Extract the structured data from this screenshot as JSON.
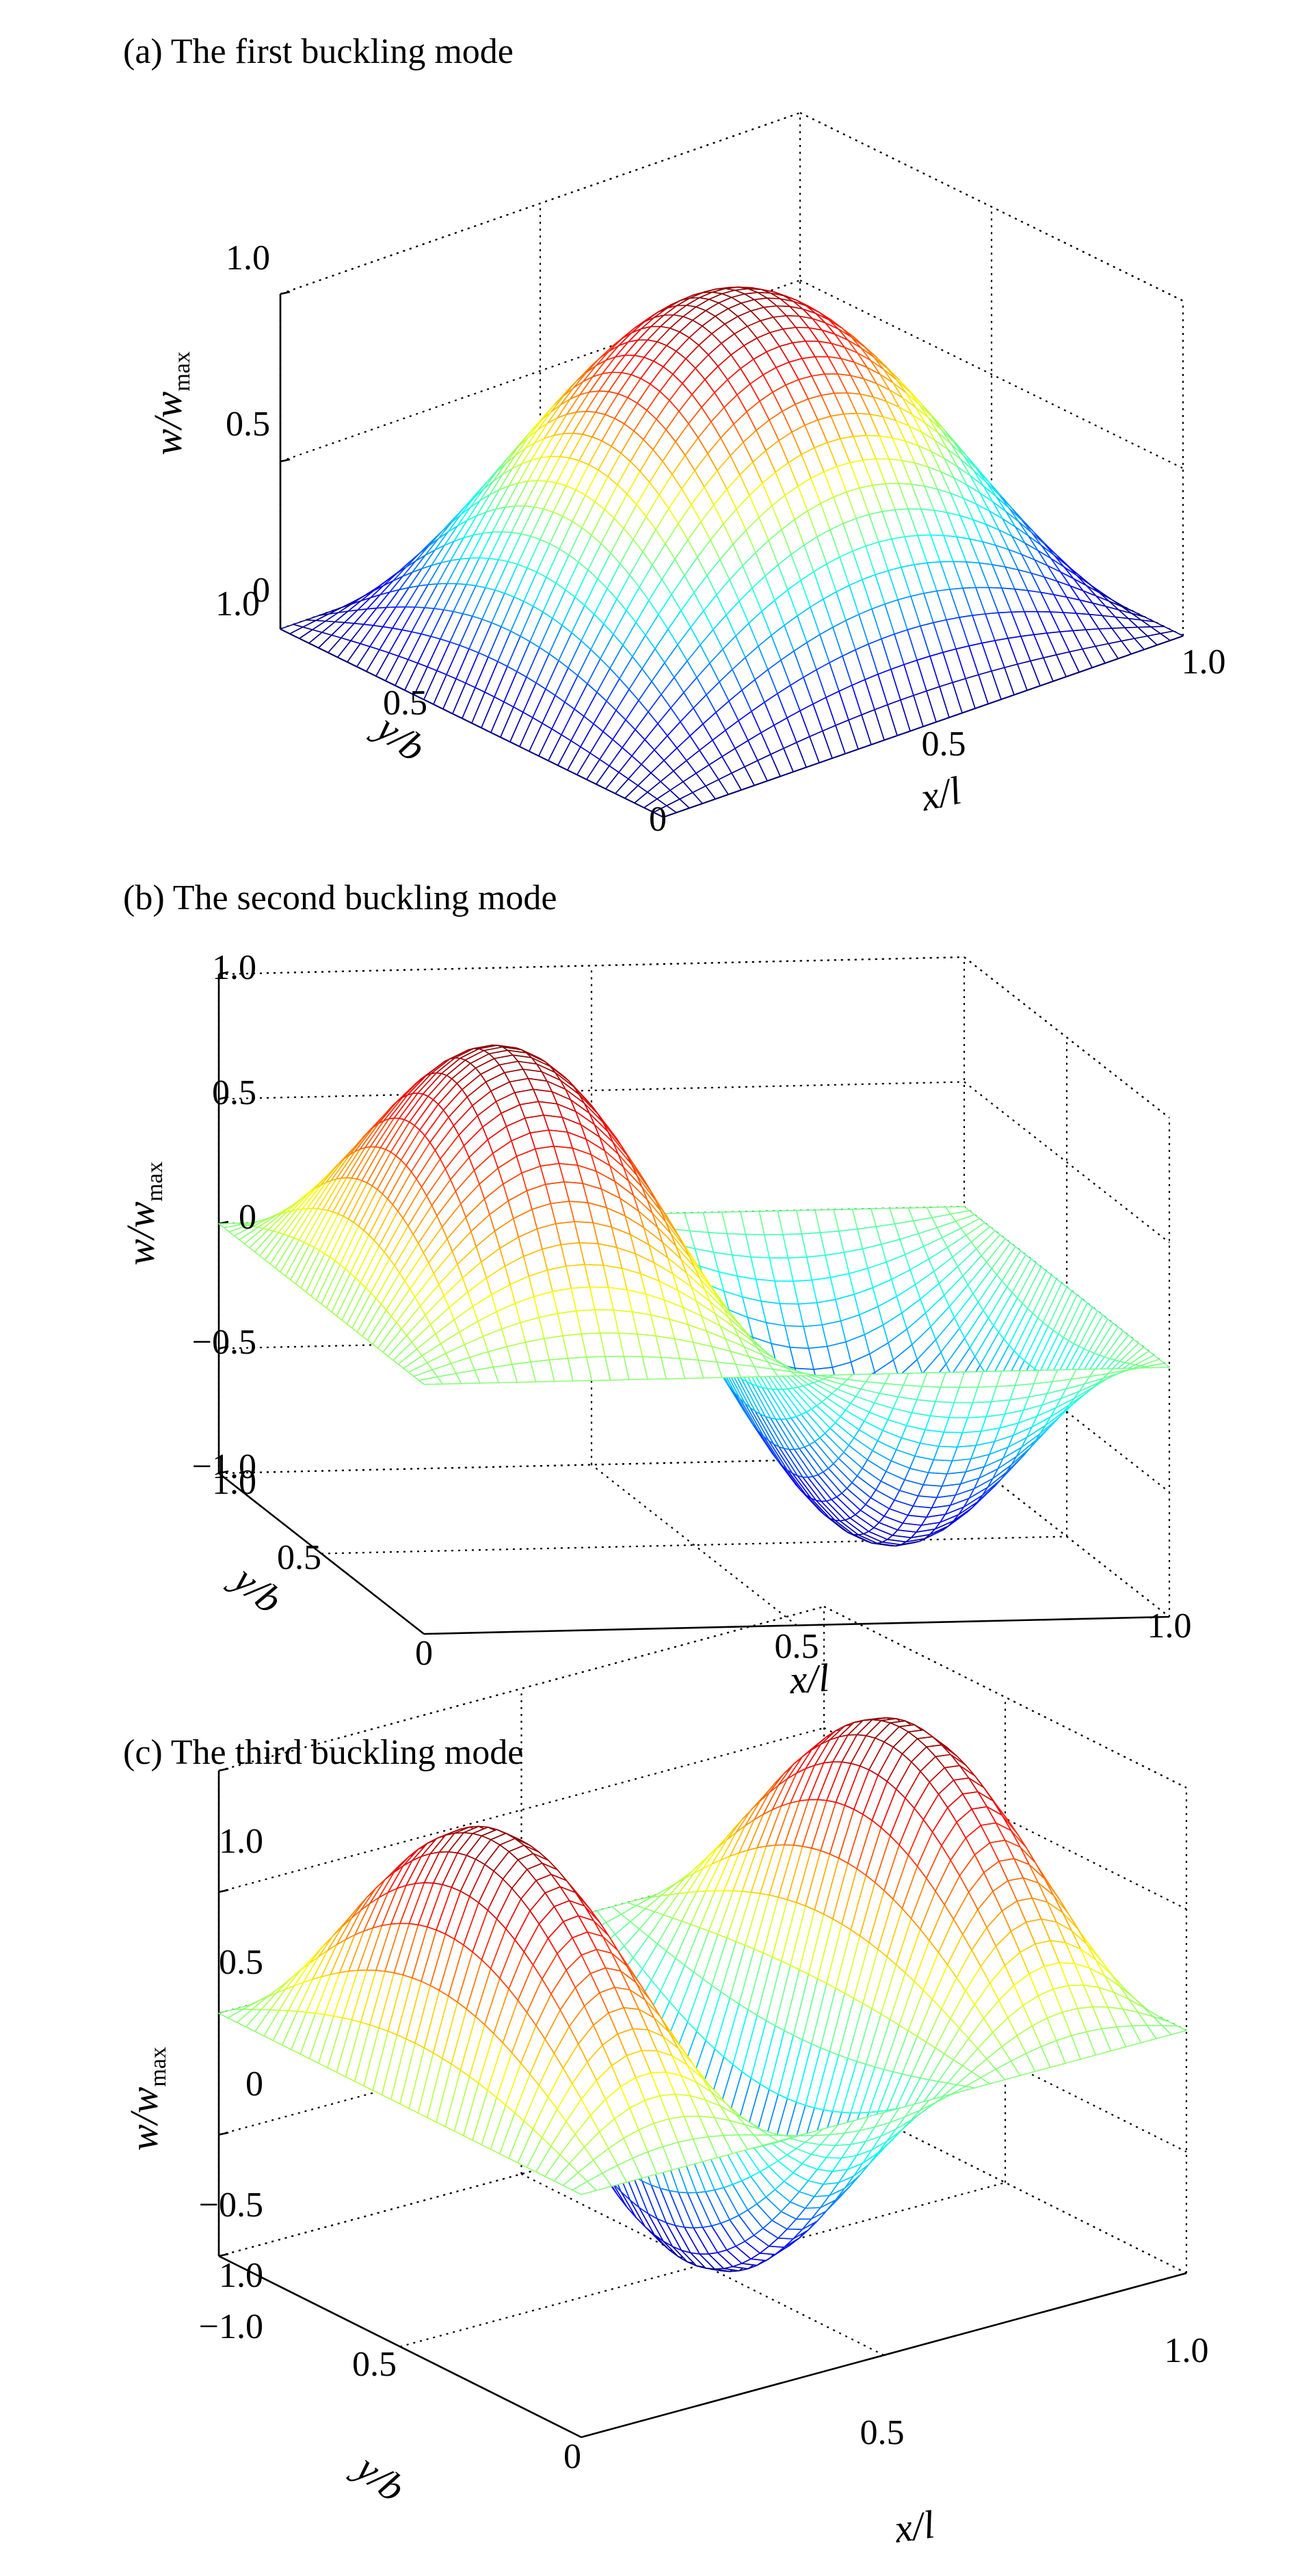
{
  "chart_data": [
    {
      "type": "surface",
      "title": "(a) The first buckling mode",
      "xlabel": "x/l",
      "ylabel": "y/b",
      "zlabel": "w/w",
      "zlabel_sub": "max",
      "xlim": [
        0,
        1
      ],
      "ylim": [
        0,
        1
      ],
      "zlim": [
        0,
        1
      ],
      "x_ticks": [
        "0.5",
        "1.0"
      ],
      "y_ticks": [
        "0",
        "0.5",
        "1.0"
      ],
      "z_ticks": [
        "0",
        "0.5",
        "1.0"
      ],
      "surface": {
        "function": "sin(pi x) sin(pi y)",
        "x_half_waves": 1,
        "y_half_waves": 1,
        "peak": 1.0,
        "min": 0.0
      },
      "grid": true,
      "colormap": "jet"
    },
    {
      "type": "surface",
      "title": "(b) The second buckling mode",
      "xlabel": "x/l",
      "ylabel": "y/b",
      "zlabel": "w/w",
      "zlabel_sub": "max",
      "xlim": [
        0,
        1
      ],
      "ylim": [
        0,
        1
      ],
      "zlim": [
        -1,
        1
      ],
      "x_ticks": [
        "0",
        "0.5",
        "1.0"
      ],
      "y_ticks": [
        "0.5",
        "1.0"
      ],
      "z_ticks": [
        "−1.0",
        "−0.5",
        "0",
        "0.5",
        "1.0"
      ],
      "surface": {
        "function": "sin(2 pi x) sin(pi y)",
        "x_half_waves": 2,
        "y_half_waves": 1,
        "peak": 1.0,
        "min": -1.0
      },
      "grid": true,
      "colormap": "jet"
    },
    {
      "type": "surface",
      "title": "(c) The third buckling mode",
      "xlabel": "x/l",
      "ylabel": "y/b",
      "zlabel": "w/w",
      "zlabel_sub": "max",
      "xlim": [
        0,
        1
      ],
      "ylim": [
        0,
        1
      ],
      "zlim": [
        -1,
        1
      ],
      "x_ticks": [
        "0.5",
        "1.0"
      ],
      "y_ticks": [
        "0",
        "0.5",
        "1.0"
      ],
      "z_ticks": [
        "−1.0",
        "−0.5",
        "0",
        "0.5",
        "1.0"
      ],
      "surface": {
        "function": "sin(3 pi x) sin(pi y)",
        "x_half_waves": 3,
        "y_half_waves": 1,
        "peak": 1.0,
        "min": -1.0
      },
      "grid": true,
      "colormap": "jet"
    }
  ]
}
